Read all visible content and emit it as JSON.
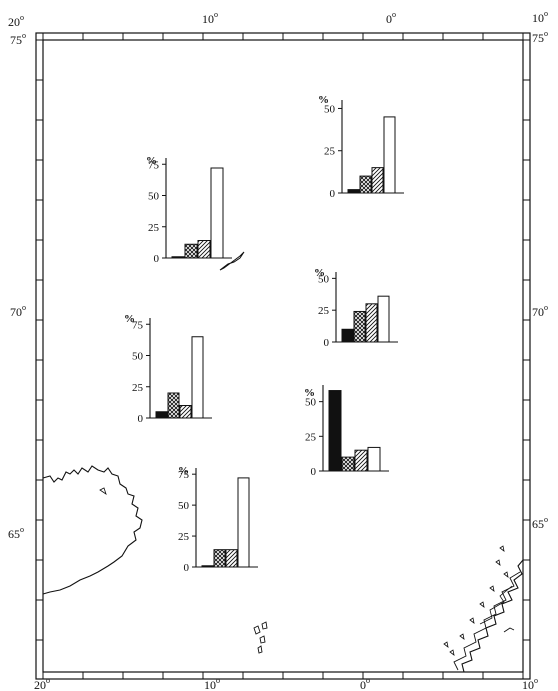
{
  "map": {
    "lon_labels_top": [
      {
        "deg": "20",
        "sym": "o"
      },
      {
        "deg": "10",
        "sym": "o"
      },
      {
        "deg": "0",
        "sym": "o"
      },
      {
        "deg": "10",
        "sym": "o"
      }
    ],
    "lon_labels_bottom": [
      {
        "deg": "20",
        "sym": "o"
      },
      {
        "deg": "10",
        "sym": "o"
      },
      {
        "deg": "0",
        "sym": "o"
      },
      {
        "deg": "10",
        "sym": "o"
      }
    ],
    "lat_labels_left": [
      {
        "deg": "75",
        "sym": "o"
      },
      {
        "deg": "70",
        "sym": "o"
      },
      {
        "deg": "65",
        "sym": "o"
      }
    ],
    "lat_labels_right": [
      {
        "deg": "75",
        "sym": "o"
      },
      {
        "deg": "70",
        "sym": "o"
      },
      {
        "deg": "65",
        "sym": "o"
      }
    ],
    "colors": {
      "ink": "#111111",
      "paper": "#ffffff"
    }
  },
  "chart_data": [
    {
      "type": "bar",
      "unit": "%",
      "ticks": [
        "0",
        "25",
        "50",
        "75"
      ],
      "ylim": [
        0,
        80
      ],
      "series": [
        {
          "values": [
            1,
            11,
            14,
            72
          ]
        }
      ]
    },
    {
      "type": "bar",
      "unit": "%",
      "ticks": [
        "0",
        "25",
        "50"
      ],
      "ylim": [
        0,
        55
      ],
      "series": [
        {
          "values": [
            2,
            10,
            15,
            45
          ]
        }
      ]
    },
    {
      "type": "bar",
      "unit": "%",
      "ticks": [
        "0",
        "25",
        "50",
        "75"
      ],
      "ylim": [
        0,
        80
      ],
      "series": [
        {
          "values": [
            5,
            20,
            10,
            65
          ]
        }
      ]
    },
    {
      "type": "bar",
      "unit": "%",
      "ticks": [
        "0",
        "25",
        "50"
      ],
      "ylim": [
        0,
        55
      ],
      "series": [
        {
          "values": [
            10,
            24,
            30,
            36
          ]
        }
      ]
    },
    {
      "type": "bar",
      "unit": "%",
      "ticks": [
        "0",
        "25",
        "50"
      ],
      "ylim": [
        0,
        62
      ],
      "series": [
        {
          "values": [
            58,
            10,
            15,
            17
          ]
        }
      ]
    },
    {
      "type": "bar",
      "unit": "%",
      "ticks": [
        "0",
        "25",
        "50",
        "75"
      ],
      "ylim": [
        0,
        80
      ],
      "series": [
        {
          "values": [
            1,
            14,
            14,
            72
          ]
        }
      ]
    }
  ]
}
